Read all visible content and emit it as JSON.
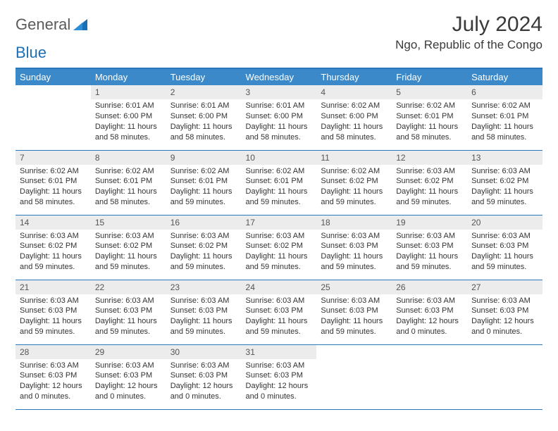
{
  "brand": {
    "part1": "General",
    "part2": "Blue"
  },
  "title": "July 2024",
  "location": "Ngo, Republic of the Congo",
  "style": {
    "header_bg": "#3b89c9",
    "header_text": "#ffffff",
    "border_color": "#2a79bd",
    "daynum_bg": "#ececec",
    "page_bg": "#ffffff",
    "body_text": "#333333",
    "title_fontsize": 30,
    "location_fontsize": 17,
    "dow_fontsize": 13,
    "cell_fontsize": 11
  },
  "days_of_week": [
    "Sunday",
    "Monday",
    "Tuesday",
    "Wednesday",
    "Thursday",
    "Friday",
    "Saturday"
  ],
  "weeks": [
    [
      {
        "n": "",
        "sr": "",
        "ss": "",
        "d1": "",
        "d2": ""
      },
      {
        "n": "1",
        "sr": "Sunrise: 6:01 AM",
        "ss": "Sunset: 6:00 PM",
        "d1": "Daylight: 11 hours",
        "d2": "and 58 minutes."
      },
      {
        "n": "2",
        "sr": "Sunrise: 6:01 AM",
        "ss": "Sunset: 6:00 PM",
        "d1": "Daylight: 11 hours",
        "d2": "and 58 minutes."
      },
      {
        "n": "3",
        "sr": "Sunrise: 6:01 AM",
        "ss": "Sunset: 6:00 PM",
        "d1": "Daylight: 11 hours",
        "d2": "and 58 minutes."
      },
      {
        "n": "4",
        "sr": "Sunrise: 6:02 AM",
        "ss": "Sunset: 6:00 PM",
        "d1": "Daylight: 11 hours",
        "d2": "and 58 minutes."
      },
      {
        "n": "5",
        "sr": "Sunrise: 6:02 AM",
        "ss": "Sunset: 6:01 PM",
        "d1": "Daylight: 11 hours",
        "d2": "and 58 minutes."
      },
      {
        "n": "6",
        "sr": "Sunrise: 6:02 AM",
        "ss": "Sunset: 6:01 PM",
        "d1": "Daylight: 11 hours",
        "d2": "and 58 minutes."
      }
    ],
    [
      {
        "n": "7",
        "sr": "Sunrise: 6:02 AM",
        "ss": "Sunset: 6:01 PM",
        "d1": "Daylight: 11 hours",
        "d2": "and 58 minutes."
      },
      {
        "n": "8",
        "sr": "Sunrise: 6:02 AM",
        "ss": "Sunset: 6:01 PM",
        "d1": "Daylight: 11 hours",
        "d2": "and 58 minutes."
      },
      {
        "n": "9",
        "sr": "Sunrise: 6:02 AM",
        "ss": "Sunset: 6:01 PM",
        "d1": "Daylight: 11 hours",
        "d2": "and 59 minutes."
      },
      {
        "n": "10",
        "sr": "Sunrise: 6:02 AM",
        "ss": "Sunset: 6:01 PM",
        "d1": "Daylight: 11 hours",
        "d2": "and 59 minutes."
      },
      {
        "n": "11",
        "sr": "Sunrise: 6:02 AM",
        "ss": "Sunset: 6:02 PM",
        "d1": "Daylight: 11 hours",
        "d2": "and 59 minutes."
      },
      {
        "n": "12",
        "sr": "Sunrise: 6:03 AM",
        "ss": "Sunset: 6:02 PM",
        "d1": "Daylight: 11 hours",
        "d2": "and 59 minutes."
      },
      {
        "n": "13",
        "sr": "Sunrise: 6:03 AM",
        "ss": "Sunset: 6:02 PM",
        "d1": "Daylight: 11 hours",
        "d2": "and 59 minutes."
      }
    ],
    [
      {
        "n": "14",
        "sr": "Sunrise: 6:03 AM",
        "ss": "Sunset: 6:02 PM",
        "d1": "Daylight: 11 hours",
        "d2": "and 59 minutes."
      },
      {
        "n": "15",
        "sr": "Sunrise: 6:03 AM",
        "ss": "Sunset: 6:02 PM",
        "d1": "Daylight: 11 hours",
        "d2": "and 59 minutes."
      },
      {
        "n": "16",
        "sr": "Sunrise: 6:03 AM",
        "ss": "Sunset: 6:02 PM",
        "d1": "Daylight: 11 hours",
        "d2": "and 59 minutes."
      },
      {
        "n": "17",
        "sr": "Sunrise: 6:03 AM",
        "ss": "Sunset: 6:02 PM",
        "d1": "Daylight: 11 hours",
        "d2": "and 59 minutes."
      },
      {
        "n": "18",
        "sr": "Sunrise: 6:03 AM",
        "ss": "Sunset: 6:03 PM",
        "d1": "Daylight: 11 hours",
        "d2": "and 59 minutes."
      },
      {
        "n": "19",
        "sr": "Sunrise: 6:03 AM",
        "ss": "Sunset: 6:03 PM",
        "d1": "Daylight: 11 hours",
        "d2": "and 59 minutes."
      },
      {
        "n": "20",
        "sr": "Sunrise: 6:03 AM",
        "ss": "Sunset: 6:03 PM",
        "d1": "Daylight: 11 hours",
        "d2": "and 59 minutes."
      }
    ],
    [
      {
        "n": "21",
        "sr": "Sunrise: 6:03 AM",
        "ss": "Sunset: 6:03 PM",
        "d1": "Daylight: 11 hours",
        "d2": "and 59 minutes."
      },
      {
        "n": "22",
        "sr": "Sunrise: 6:03 AM",
        "ss": "Sunset: 6:03 PM",
        "d1": "Daylight: 11 hours",
        "d2": "and 59 minutes."
      },
      {
        "n": "23",
        "sr": "Sunrise: 6:03 AM",
        "ss": "Sunset: 6:03 PM",
        "d1": "Daylight: 11 hours",
        "d2": "and 59 minutes."
      },
      {
        "n": "24",
        "sr": "Sunrise: 6:03 AM",
        "ss": "Sunset: 6:03 PM",
        "d1": "Daylight: 11 hours",
        "d2": "and 59 minutes."
      },
      {
        "n": "25",
        "sr": "Sunrise: 6:03 AM",
        "ss": "Sunset: 6:03 PM",
        "d1": "Daylight: 11 hours",
        "d2": "and 59 minutes."
      },
      {
        "n": "26",
        "sr": "Sunrise: 6:03 AM",
        "ss": "Sunset: 6:03 PM",
        "d1": "Daylight: 12 hours",
        "d2": "and 0 minutes."
      },
      {
        "n": "27",
        "sr": "Sunrise: 6:03 AM",
        "ss": "Sunset: 6:03 PM",
        "d1": "Daylight: 12 hours",
        "d2": "and 0 minutes."
      }
    ],
    [
      {
        "n": "28",
        "sr": "Sunrise: 6:03 AM",
        "ss": "Sunset: 6:03 PM",
        "d1": "Daylight: 12 hours",
        "d2": "and 0 minutes."
      },
      {
        "n": "29",
        "sr": "Sunrise: 6:03 AM",
        "ss": "Sunset: 6:03 PM",
        "d1": "Daylight: 12 hours",
        "d2": "and 0 minutes."
      },
      {
        "n": "30",
        "sr": "Sunrise: 6:03 AM",
        "ss": "Sunset: 6:03 PM",
        "d1": "Daylight: 12 hours",
        "d2": "and 0 minutes."
      },
      {
        "n": "31",
        "sr": "Sunrise: 6:03 AM",
        "ss": "Sunset: 6:03 PM",
        "d1": "Daylight: 12 hours",
        "d2": "and 0 minutes."
      },
      {
        "n": "",
        "sr": "",
        "ss": "",
        "d1": "",
        "d2": ""
      },
      {
        "n": "",
        "sr": "",
        "ss": "",
        "d1": "",
        "d2": ""
      },
      {
        "n": "",
        "sr": "",
        "ss": "",
        "d1": "",
        "d2": ""
      }
    ]
  ]
}
